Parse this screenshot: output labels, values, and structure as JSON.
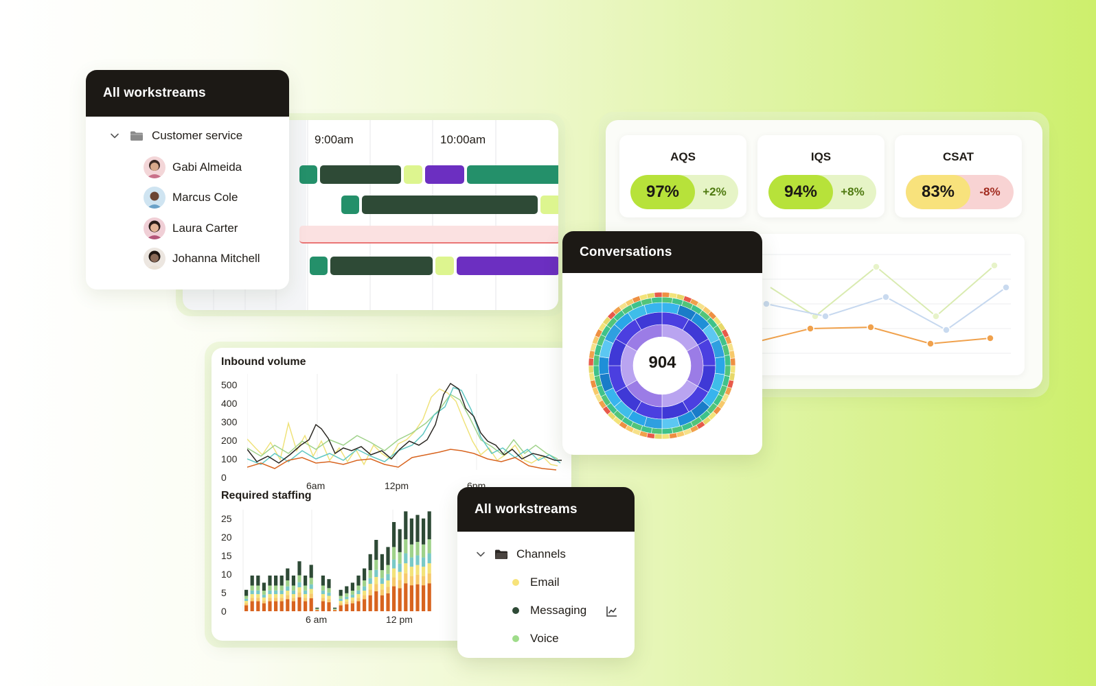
{
  "workstreams_panel": {
    "title": "All workstreams",
    "group": "Customer service",
    "agents": [
      {
        "name": "Gabi Almeida",
        "avatar_color": "#c9718a"
      },
      {
        "name": "Marcus Cole",
        "avatar_color": "#6aa1c8"
      },
      {
        "name": "Laura Carter",
        "avatar_color": "#b4557a"
      },
      {
        "name": "Johanna Mitchell",
        "avatar_color": "#8a6a58"
      }
    ]
  },
  "schedule": {
    "times": [
      "9:00am",
      "10:00am"
    ],
    "colors": {
      "primary": "#24906a",
      "dark": "#2e4a36",
      "lime": "#ddf58f",
      "purple": "#6c2fc1",
      "off": "#fbe1e1",
      "off_border": "#ea7474"
    }
  },
  "kpis": [
    {
      "label": "AQS",
      "value": "97%",
      "delta": "+2%",
      "main_color": "#b7e23a",
      "delta_bg": "#e6f4c6",
      "delta_color": "#4f7a10"
    },
    {
      "label": "IQS",
      "value": "94%",
      "delta": "+8%",
      "main_color": "#b7e23a",
      "delta_bg": "#e6f4c6",
      "delta_color": "#4f7a10"
    },
    {
      "label": "CSAT",
      "value": "83%",
      "delta": "-8%",
      "main_color": "#f8e27c",
      "delta_bg": "#f8d3d3",
      "delta_color": "#a22c20"
    }
  ],
  "conversations": {
    "title": "Conversations",
    "total": "904"
  },
  "inbound_volume": {
    "title": "Inbound volume",
    "y_ticks": [
      "500",
      "400",
      "300",
      "200",
      "100",
      "0"
    ],
    "x_ticks": [
      "6am",
      "12pm",
      "6pm"
    ]
  },
  "required_staffing": {
    "title": "Required staffing",
    "y_ticks": [
      "25",
      "20",
      "15",
      "10",
      "5",
      "0"
    ],
    "x_ticks": [
      "6 am",
      "12 pm"
    ]
  },
  "channels_panel": {
    "title": "All workstreams",
    "group": "Channels",
    "items": [
      {
        "label": "Email",
        "color": "#f7e37a"
      },
      {
        "label": "Messaging",
        "color": "#2e4a36"
      },
      {
        "label": "Voice",
        "color": "#9fdc8a"
      }
    ]
  },
  "icons": [
    "chevron-down-icon",
    "folder-icon",
    "chart-line-icon"
  ]
}
